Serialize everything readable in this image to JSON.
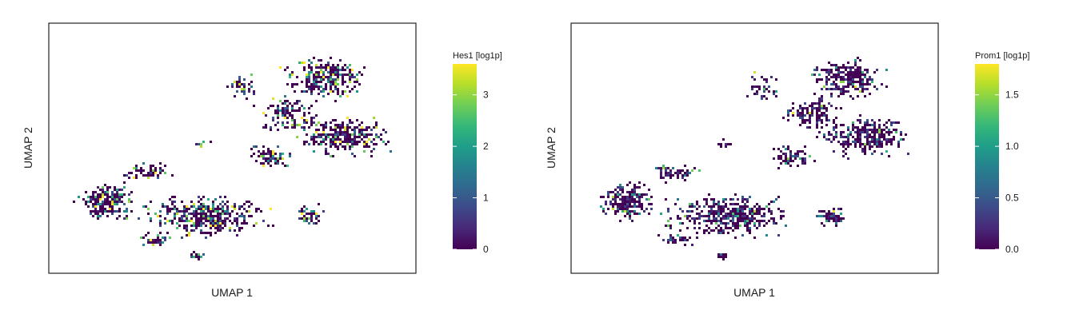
{
  "chart_data": [
    {
      "type": "scatter",
      "xlabel": "UMAP 1",
      "ylabel": "UMAP 2",
      "colorbar": {
        "title": "Hes1 [log1p]",
        "range": [
          0,
          3.6
        ],
        "ticks": [
          "0",
          "1",
          "2",
          "3"
        ],
        "tick_values": [
          0,
          1,
          2,
          3
        ],
        "colormap": "viridis"
      },
      "grid": false,
      "seed": 11,
      "expression_scale": 0.45,
      "hot_fraction": 0.05
    },
    {
      "type": "scatter",
      "xlabel": "UMAP 1",
      "ylabel": "UMAP 2",
      "colorbar": {
        "title": "Prom1 [log1p]",
        "range": [
          0,
          1.8
        ],
        "ticks": [
          "0.0",
          "0.5",
          "1.0",
          "1.5"
        ],
        "tick_values": [
          0,
          0.5,
          1.0,
          1.5
        ],
        "colormap": "viridis"
      },
      "grid": false,
      "seed": 29,
      "expression_scale": 0.2,
      "hot_fraction": 0.03
    }
  ],
  "colors": {
    "frame": "#222222",
    "viridis": [
      "#440154",
      "#482878",
      "#3e4989",
      "#31688e",
      "#26828e",
      "#1f9e89",
      "#35b779",
      "#6ece58",
      "#b5de2b",
      "#fde725"
    ]
  }
}
